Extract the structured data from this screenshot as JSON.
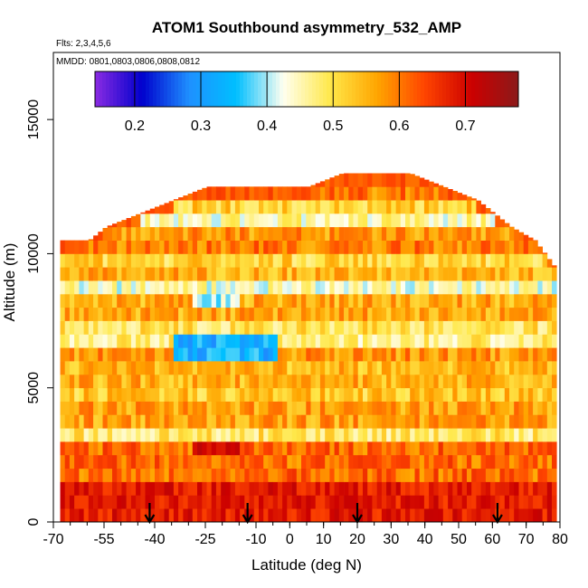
{
  "chart_data": {
    "type": "heatmap",
    "title": "ATOM1 Southbound asymmetry_532_AMP",
    "flights_note": "Flts: 2,3,4,5,6",
    "dates_note": "MMDD: 0801,0803,0806,0808,0812",
    "xlabel": "Latitude (deg N)",
    "ylabel": "Altitude (m)",
    "xlim": [
      -70,
      80
    ],
    "ylim": [
      0,
      17500
    ],
    "x_tick_labels": [
      "-70",
      "-55",
      "-40",
      "-25",
      "-10",
      "0",
      "10",
      "20",
      "30",
      "40",
      "50",
      "60",
      "70",
      "80"
    ],
    "x_tick_values": [
      -70,
      -55,
      -40,
      -25,
      -10,
      0,
      10,
      20,
      30,
      40,
      50,
      60,
      70,
      80
    ],
    "x_minor_step": 5,
    "y_tick_labels": [
      "0",
      "5000",
      "10000",
      "15000"
    ],
    "y_tick_values": [
      0,
      5000,
      10000,
      15000
    ],
    "colorbar": {
      "range": [
        0.14,
        0.78
      ],
      "tick_labels": [
        "0.2",
        "0.3",
        "0.4",
        "0.5",
        "0.6",
        "0.7"
      ],
      "tick_values": [
        0.2,
        0.3,
        0.4,
        0.5,
        0.6,
        0.7
      ],
      "colors": [
        "#8a2be2",
        "#0000cd",
        "#1e90ff",
        "#00bfff",
        "#fffff0",
        "#ffe84a",
        "#ffa500",
        "#ff4500",
        "#cc0000",
        "#8b1a1a"
      ]
    },
    "arrow_latitudes": [
      -41.5,
      -12.5,
      20,
      61.5
    ],
    "approx_bounds": {
      "layer_top_altitude_by_latitude": [
        [
          -68,
          10500
        ],
        [
          -60,
          10500
        ],
        [
          -55,
          11000
        ],
        [
          -45,
          11500
        ],
        [
          -35,
          12000
        ],
        [
          -25,
          12500
        ],
        [
          -15,
          12500
        ],
        [
          -5,
          12500
        ],
        [
          5,
          12500
        ],
        [
          15,
          13000
        ],
        [
          25,
          13000
        ],
        [
          35,
          13000
        ],
        [
          45,
          12500
        ],
        [
          55,
          12000
        ],
        [
          65,
          11000
        ],
        [
          72,
          10500
        ],
        [
          78,
          9500
        ]
      ]
    }
  }
}
